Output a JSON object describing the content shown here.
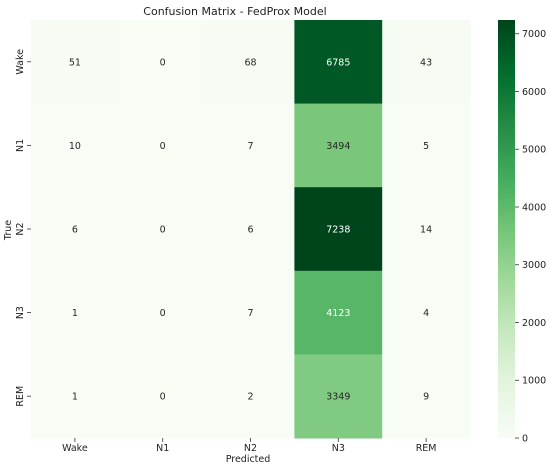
{
  "chart_data": {
    "type": "heatmap",
    "title": "Confusion Matrix - FedProx Model",
    "xlabel": "Predicted",
    "ylabel": "True",
    "x_categories": [
      "Wake",
      "N1",
      "N2",
      "N3",
      "REM"
    ],
    "y_categories": [
      "Wake",
      "N1",
      "N2",
      "N3",
      "REM"
    ],
    "values": [
      [
        51,
        0,
        68,
        6785,
        43
      ],
      [
        10,
        0,
        7,
        3494,
        5
      ],
      [
        6,
        0,
        6,
        7238,
        14
      ],
      [
        1,
        0,
        7,
        4123,
        4
      ],
      [
        1,
        0,
        2,
        3349,
        9
      ]
    ],
    "colorbar": {
      "range": [
        0,
        7238
      ],
      "ticks": [
        0,
        1000,
        2000,
        3000,
        4000,
        5000,
        6000,
        7000
      ],
      "colormap": "Greens",
      "low_color": "#f7fcf5",
      "high_color": "#00441b"
    },
    "annotations_shown": true,
    "grid": false
  }
}
